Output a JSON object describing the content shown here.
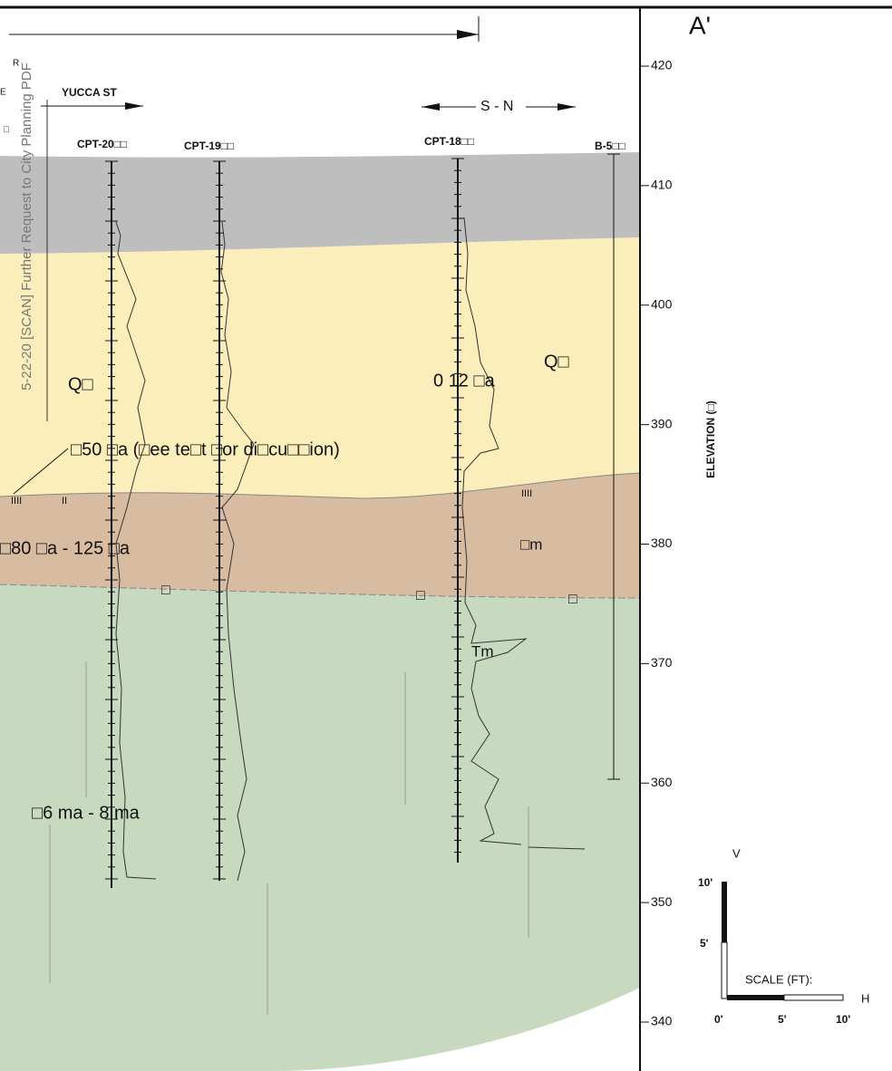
{
  "section_label": "A'",
  "watermark": "5-22-20 [SCAN] Further Request to City Planning PDF",
  "edge_labels": [
    "E",
    "R",
    "□"
  ],
  "street": "YUCCA ST",
  "direction": "S - N",
  "borings": [
    "CPT-20□□",
    "CPT-19□□",
    "CPT-18□□",
    "B-5□□"
  ],
  "units": {
    "alluvium_left": "Q□",
    "alluvium_right": "Q□",
    "age_upper": "0 12 □a",
    "age_note": "□50 □a (□ee te□t □or di□cu□□ion)",
    "age_middle": "□80 □a - 125 □a",
    "middle_unit": "□m",
    "bedrock_unit": "Tm",
    "age_bedrock": "□6 ma - 8 ma",
    "contact_marks": [
      "□",
      "□",
      "□"
    ],
    "hatch": [
      "IIII",
      "II",
      "IIII"
    ]
  },
  "elevation_axis": {
    "label": "ELEVATION (□)",
    "ticks": [
      420,
      410,
      400,
      390,
      380,
      370,
      360,
      350,
      340
    ]
  },
  "scale": {
    "vertical": "V",
    "v_ticks": [
      "10'",
      "5'"
    ],
    "title": "SCALE (FT):",
    "h_ticks": [
      "0'",
      "5'",
      "10'"
    ],
    "horizontal": "H"
  }
}
